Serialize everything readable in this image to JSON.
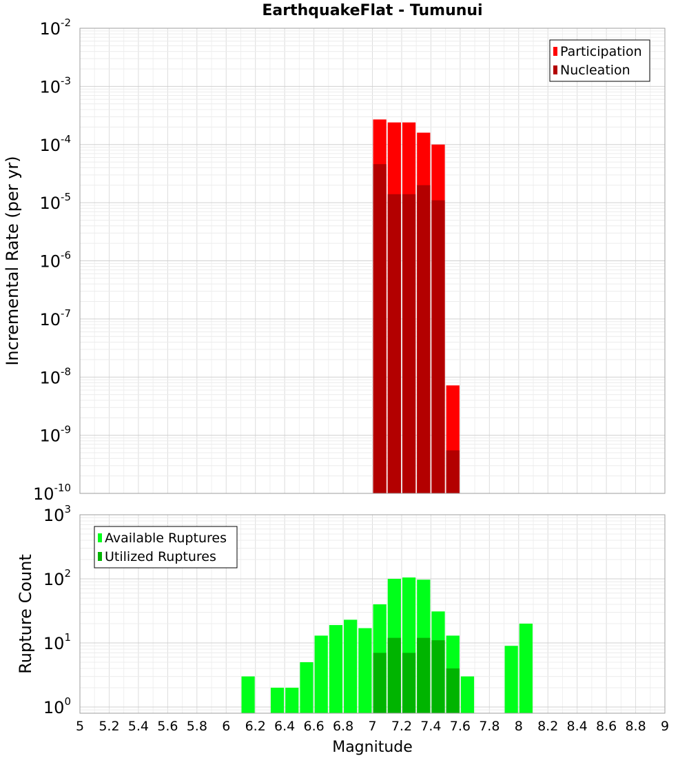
{
  "chart_data": [
    {
      "type": "bar",
      "title": "EarthquakeFlat - Tumunui",
      "xlabel": "",
      "ylabel": "Incremental Rate (per yr)",
      "yscale": "log",
      "xlim": [
        5,
        9
      ],
      "ylim": [
        1e-10,
        0.01
      ],
      "bin_width": 0.1,
      "y_tick_labels": [
        {
          "base": "10",
          "exp": "-2",
          "value": 0.01
        },
        {
          "base": "10",
          "exp": "-3",
          "value": 0.001
        },
        {
          "base": "10",
          "exp": "-4",
          "value": 0.0001
        },
        {
          "base": "10",
          "exp": "-5",
          "value": 1e-05
        },
        {
          "base": "10",
          "exp": "-6",
          "value": 1e-06
        },
        {
          "base": "10",
          "exp": "-7",
          "value": 1e-07
        },
        {
          "base": "10",
          "exp": "-8",
          "value": 1e-08
        },
        {
          "base": "10",
          "exp": "-9",
          "value": 1e-09
        },
        {
          "base": "10",
          "exp": "-10",
          "value": 1e-10
        }
      ],
      "legend_position": "top-right",
      "series": [
        {
          "name": "Participation",
          "color": "#ff0000",
          "x": [
            7.05,
            7.15,
            7.25,
            7.35,
            7.45,
            7.55
          ],
          "values": [
            0.00027,
            0.00024,
            0.00024,
            0.00016,
            0.0001,
            7.2e-09
          ]
        },
        {
          "name": "Nucleation",
          "color": "#b30000",
          "x": [
            7.05,
            7.15,
            7.25,
            7.35,
            7.45,
            7.55
          ],
          "values": [
            4.6e-05,
            1.4e-05,
            1.4e-05,
            2e-05,
            1.1e-05,
            5.5e-10
          ]
        }
      ]
    },
    {
      "type": "bar",
      "title": "",
      "xlabel": "Magnitude",
      "ylabel": "Rupture Count",
      "yscale": "log",
      "xlim": [
        5,
        9
      ],
      "ylim": [
        0.8,
        1000
      ],
      "bin_width": 0.1,
      "y_tick_labels": [
        {
          "base": "10",
          "exp": "3",
          "value": 1000
        },
        {
          "base": "10",
          "exp": "2",
          "value": 100
        },
        {
          "base": "10",
          "exp": "1",
          "value": 10
        },
        {
          "base": "10",
          "exp": "0",
          "value": 1
        }
      ],
      "x_tick_labels": [
        "5",
        "5.2",
        "5.4",
        "5.6",
        "5.8",
        "6",
        "6.2",
        "6.4",
        "6.6",
        "6.8",
        "7",
        "7.2",
        "7.4",
        "7.6",
        "7.8",
        "8",
        "8.2",
        "8.4",
        "8.6",
        "8.8",
        "9"
      ],
      "legend_position": "top-left",
      "series": [
        {
          "name": "Available Ruptures",
          "color": "#00ff1a",
          "x": [
            6.15,
            6.35,
            6.45,
            6.55,
            6.65,
            6.75,
            6.85,
            6.95,
            7.05,
            7.15,
            7.25,
            7.35,
            7.45,
            7.55,
            7.65,
            7.95,
            8.05
          ],
          "values": [
            3,
            2,
            2,
            5,
            13,
            19,
            23,
            17,
            40,
            100,
            105,
            97,
            31,
            13,
            3,
            9,
            20
          ]
        },
        {
          "name": "Utilized Ruptures",
          "color": "#00b400",
          "x": [
            7.05,
            7.15,
            7.25,
            7.35,
            7.45,
            7.55
          ],
          "values": [
            7,
            12,
            7,
            12,
            11,
            4
          ]
        }
      ]
    }
  ]
}
